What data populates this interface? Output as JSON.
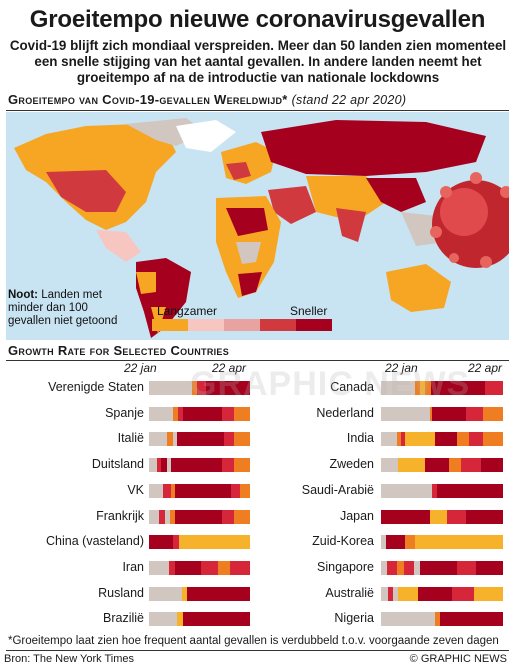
{
  "title": "Groeitempo nieuwe coronavirusgevallen",
  "subtitle": "Covid-19 blijft zich mondiaal verspreiden. Meer dan 50 landen zien momenteel een snelle stijging van het aantal gevallen. In andere landen neemt het groeitempo af na de introductie van nationale lockdowns",
  "map_section": {
    "heading": "Groeitempo van Covid-19-gevallen Wereldwijd*",
    "date": "(stand 22 apr 2020)",
    "note_bold": "Noot:",
    "note_text": "Landen met minder dan 100 gevallen niet getoond",
    "legend_slower": "Langzamer",
    "legend_faster": "Sneller",
    "legend_colors": [
      "#f6a623",
      "#f7c6c1",
      "#e8a3a0",
      "#d03a3e",
      "#a5001e"
    ]
  },
  "chart_section": {
    "heading": "Growth Rate for Selected Countries",
    "date_start": "22 jan",
    "date_end": "22 apr"
  },
  "colors": {
    "grey": "#d2c7c0",
    "yellow": "#f7b22b",
    "orange": "#ef7d22",
    "red": "#d5263a",
    "darkred": "#a5001e"
  },
  "chart_data": {
    "type": "table",
    "left": [
      {
        "name": "Verenigde Staten",
        "segments": [
          [
            "grey",
            0.43
          ],
          [
            "orange",
            0.05
          ],
          [
            "red",
            0.08
          ],
          [
            "darkred",
            0.44
          ]
        ]
      },
      {
        "name": "Spanje",
        "segments": [
          [
            "grey",
            0.24
          ],
          [
            "orange",
            0.05
          ],
          [
            "red",
            0.05
          ],
          [
            "darkred",
            0.38
          ],
          [
            "red",
            0.12
          ],
          [
            "orange",
            0.16
          ]
        ]
      },
      {
        "name": "Italië",
        "segments": [
          [
            "grey",
            0.18
          ],
          [
            "orange",
            0.06
          ],
          [
            "grey",
            0.04
          ],
          [
            "darkred",
            0.46
          ],
          [
            "red",
            0.1
          ],
          [
            "orange",
            0.16
          ]
        ]
      },
      {
        "name": "Duitsland",
        "segments": [
          [
            "grey",
            0.08
          ],
          [
            "red",
            0.04
          ],
          [
            "darkred",
            0.06
          ],
          [
            "grey",
            0.04
          ],
          [
            "darkred",
            0.5
          ],
          [
            "red",
            0.12
          ],
          [
            "orange",
            0.16
          ]
        ]
      },
      {
        "name": "VK",
        "segments": [
          [
            "grey",
            0.14
          ],
          [
            "red",
            0.08
          ],
          [
            "orange",
            0.04
          ],
          [
            "darkred",
            0.55
          ],
          [
            "red",
            0.09
          ],
          [
            "orange",
            0.1
          ]
        ]
      },
      {
        "name": "Frankrijk",
        "segments": [
          [
            "grey",
            0.1
          ],
          [
            "red",
            0.06
          ],
          [
            "grey",
            0.05
          ],
          [
            "orange",
            0.05
          ],
          [
            "darkred",
            0.46
          ],
          [
            "red",
            0.12
          ],
          [
            "orange",
            0.16
          ]
        ]
      },
      {
        "name": "China (vasteland)",
        "segments": [
          [
            "darkred",
            0.24
          ],
          [
            "red",
            0.06
          ],
          [
            "yellow",
            0.7
          ]
        ]
      },
      {
        "name": "Iran",
        "segments": [
          [
            "grey",
            0.2
          ],
          [
            "red",
            0.06
          ],
          [
            "darkred",
            0.26
          ],
          [
            "red",
            0.16
          ],
          [
            "orange",
            0.12
          ],
          [
            "red",
            0.2
          ]
        ]
      },
      {
        "name": "Rusland",
        "segments": [
          [
            "grey",
            0.33
          ],
          [
            "yellow",
            0.05
          ],
          [
            "darkred",
            0.62
          ]
        ]
      },
      {
        "name": "Brazilië",
        "segments": [
          [
            "grey",
            0.28
          ],
          [
            "yellow",
            0.06
          ],
          [
            "darkred",
            0.66
          ]
        ]
      }
    ],
    "right": [
      {
        "name": "Canada",
        "segments": [
          [
            "grey",
            0.28
          ],
          [
            "orange",
            0.04
          ],
          [
            "yellow",
            0.04
          ],
          [
            "orange",
            0.05
          ],
          [
            "darkred",
            0.44
          ],
          [
            "red",
            0.15
          ]
        ]
      },
      {
        "name": "Nederland",
        "segments": [
          [
            "grey",
            0.4
          ],
          [
            "orange",
            0.02
          ],
          [
            "darkred",
            0.28
          ],
          [
            "red",
            0.14
          ],
          [
            "orange",
            0.16
          ]
        ]
      },
      {
        "name": "India",
        "segments": [
          [
            "grey",
            0.13
          ],
          [
            "orange",
            0.03
          ],
          [
            "red",
            0.04
          ],
          [
            "yellow",
            0.24
          ],
          [
            "darkred",
            0.18
          ],
          [
            "orange",
            0.1
          ],
          [
            "red",
            0.12
          ],
          [
            "orange",
            0.16
          ]
        ]
      },
      {
        "name": "Zweden",
        "segments": [
          [
            "grey",
            0.14
          ],
          [
            "yellow",
            0.22
          ],
          [
            "darkred",
            0.2
          ],
          [
            "orange",
            0.1
          ],
          [
            "red",
            0.16
          ],
          [
            "darkred",
            0.18
          ]
        ]
      },
      {
        "name": "Saudi-Arabië",
        "segments": [
          [
            "grey",
            0.42
          ],
          [
            "red",
            0.04
          ],
          [
            "darkred",
            0.54
          ]
        ]
      },
      {
        "name": "Japan",
        "segments": [
          [
            "darkred",
            0.4
          ],
          [
            "yellow",
            0.14
          ],
          [
            "red",
            0.16
          ],
          [
            "darkred",
            0.3
          ]
        ]
      },
      {
        "name": "Zuid-Korea",
        "segments": [
          [
            "grey",
            0.04
          ],
          [
            "darkred",
            0.16
          ],
          [
            "orange",
            0.08
          ],
          [
            "yellow",
            0.72
          ]
        ]
      },
      {
        "name": "Singapore",
        "segments": [
          [
            "grey",
            0.05
          ],
          [
            "red",
            0.08
          ],
          [
            "orange",
            0.06
          ],
          [
            "red",
            0.08
          ],
          [
            "grey",
            0.05
          ],
          [
            "darkred",
            0.3
          ],
          [
            "red",
            0.16
          ],
          [
            "darkred",
            0.22
          ]
        ]
      },
      {
        "name": "Australië",
        "segments": [
          [
            "grey",
            0.06
          ],
          [
            "red",
            0.04
          ],
          [
            "grey",
            0.04
          ],
          [
            "yellow",
            0.16
          ],
          [
            "darkred",
            0.28
          ],
          [
            "red",
            0.18
          ],
          [
            "yellow",
            0.24
          ]
        ]
      },
      {
        "name": "Nigeria",
        "segments": [
          [
            "grey",
            0.44
          ],
          [
            "orange",
            0.04
          ],
          [
            "darkred",
            0.52
          ]
        ]
      }
    ]
  },
  "footnote": "*Groeitempo laat zien hoe frequent aantal gevallen is verdubbeld t.o.v. voorgaande zeven dagen",
  "source": "Bron: The New York Times",
  "credit": "© GRAPHIC NEWS",
  "watermark": "GRAPHIC NEWS"
}
